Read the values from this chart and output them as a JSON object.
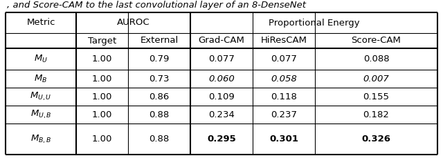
{
  "col_headers_row1": [
    "Metric",
    "AUROC",
    "Proportional Energy"
  ],
  "col_headers_row2": [
    "Target",
    "External",
    "Grad-CAM",
    "HiResCAM",
    "Score-CAM"
  ],
  "rows": [
    {
      "label": "$M_U$",
      "values": [
        "1.00",
        "0.79",
        "0.077",
        "0.077",
        "0.088"
      ],
      "italic_vals": [
        false,
        false,
        false,
        false,
        false
      ],
      "bold_vals": [
        false,
        false,
        false,
        false,
        false
      ]
    },
    {
      "label": "$M_B$",
      "values": [
        "1.00",
        "0.73",
        "0.060",
        "0.058",
        "0.007"
      ],
      "italic_vals": [
        false,
        false,
        true,
        true,
        true
      ],
      "bold_vals": [
        false,
        false,
        false,
        false,
        false
      ]
    },
    {
      "label": "$M_{U,U}$",
      "values": [
        "1.00",
        "0.86",
        "0.109",
        "0.118",
        "0.155"
      ],
      "italic_vals": [
        false,
        false,
        false,
        false,
        false
      ],
      "bold_vals": [
        false,
        false,
        false,
        false,
        false
      ]
    },
    {
      "label": "$M_{U,B}$",
      "values": [
        "1.00",
        "0.88",
        "0.234",
        "0.237",
        "0.182"
      ],
      "italic_vals": [
        false,
        false,
        false,
        false,
        false
      ],
      "bold_vals": [
        false,
        false,
        false,
        false,
        false
      ]
    },
    {
      "label": "$M_{B,B}$",
      "values": [
        "1.00",
        "0.88",
        "0.295",
        "0.301",
        "0.326"
      ],
      "italic_vals": [
        false,
        false,
        false,
        false,
        false
      ],
      "bold_vals": [
        false,
        false,
        true,
        true,
        true
      ]
    }
  ],
  "background_color": "#ffffff",
  "text_color": "#000000",
  "font_size": 9.5,
  "top_text": ", and Score-CAM to the last convolutional layer of an 8-DenseNet"
}
